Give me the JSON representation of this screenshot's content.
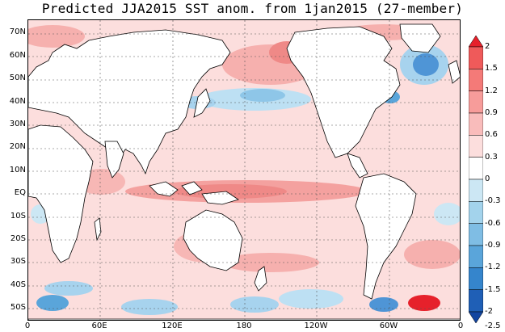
{
  "title": "Predicted JJA2015 SST anom. from 1jan2015 (27-member)",
  "lat_labels": [
    "70N",
    "60N",
    "50N",
    "40N",
    "30N",
    "20N",
    "10N",
    "EQ",
    "10S",
    "20S",
    "30S",
    "40S",
    "50S"
  ],
  "lon_labels": [
    "0",
    "60E",
    "120E",
    "180",
    "120W",
    "60W",
    "0"
  ],
  "colorbar": {
    "labels": [
      "2",
      "1.5",
      "1.2",
      "0.9",
      "0.6",
      "0.3",
      "0",
      "-0.3",
      "-0.6",
      "-0.9",
      "-1.2",
      "-1.5",
      "-2",
      "-2.5"
    ],
    "colors": [
      "#e6212b",
      "#ef5a5a",
      "#f47a78",
      "#f79c9a",
      "#f9bcbb",
      "#fcdedd",
      "#ffffff",
      "#cce7f4",
      "#a3d3ec",
      "#7fbde4",
      "#5aa5da",
      "#3585cc",
      "#1f5fb6",
      "#1245a0"
    ]
  },
  "colors": {
    "land": "#ffffff",
    "ocean_base": "#fcdedd",
    "warm": "#f7b3b1",
    "strong_warm": "#f08d8b",
    "cool": "#a7d3ee",
    "strong_cool": "#4f95d6"
  }
}
